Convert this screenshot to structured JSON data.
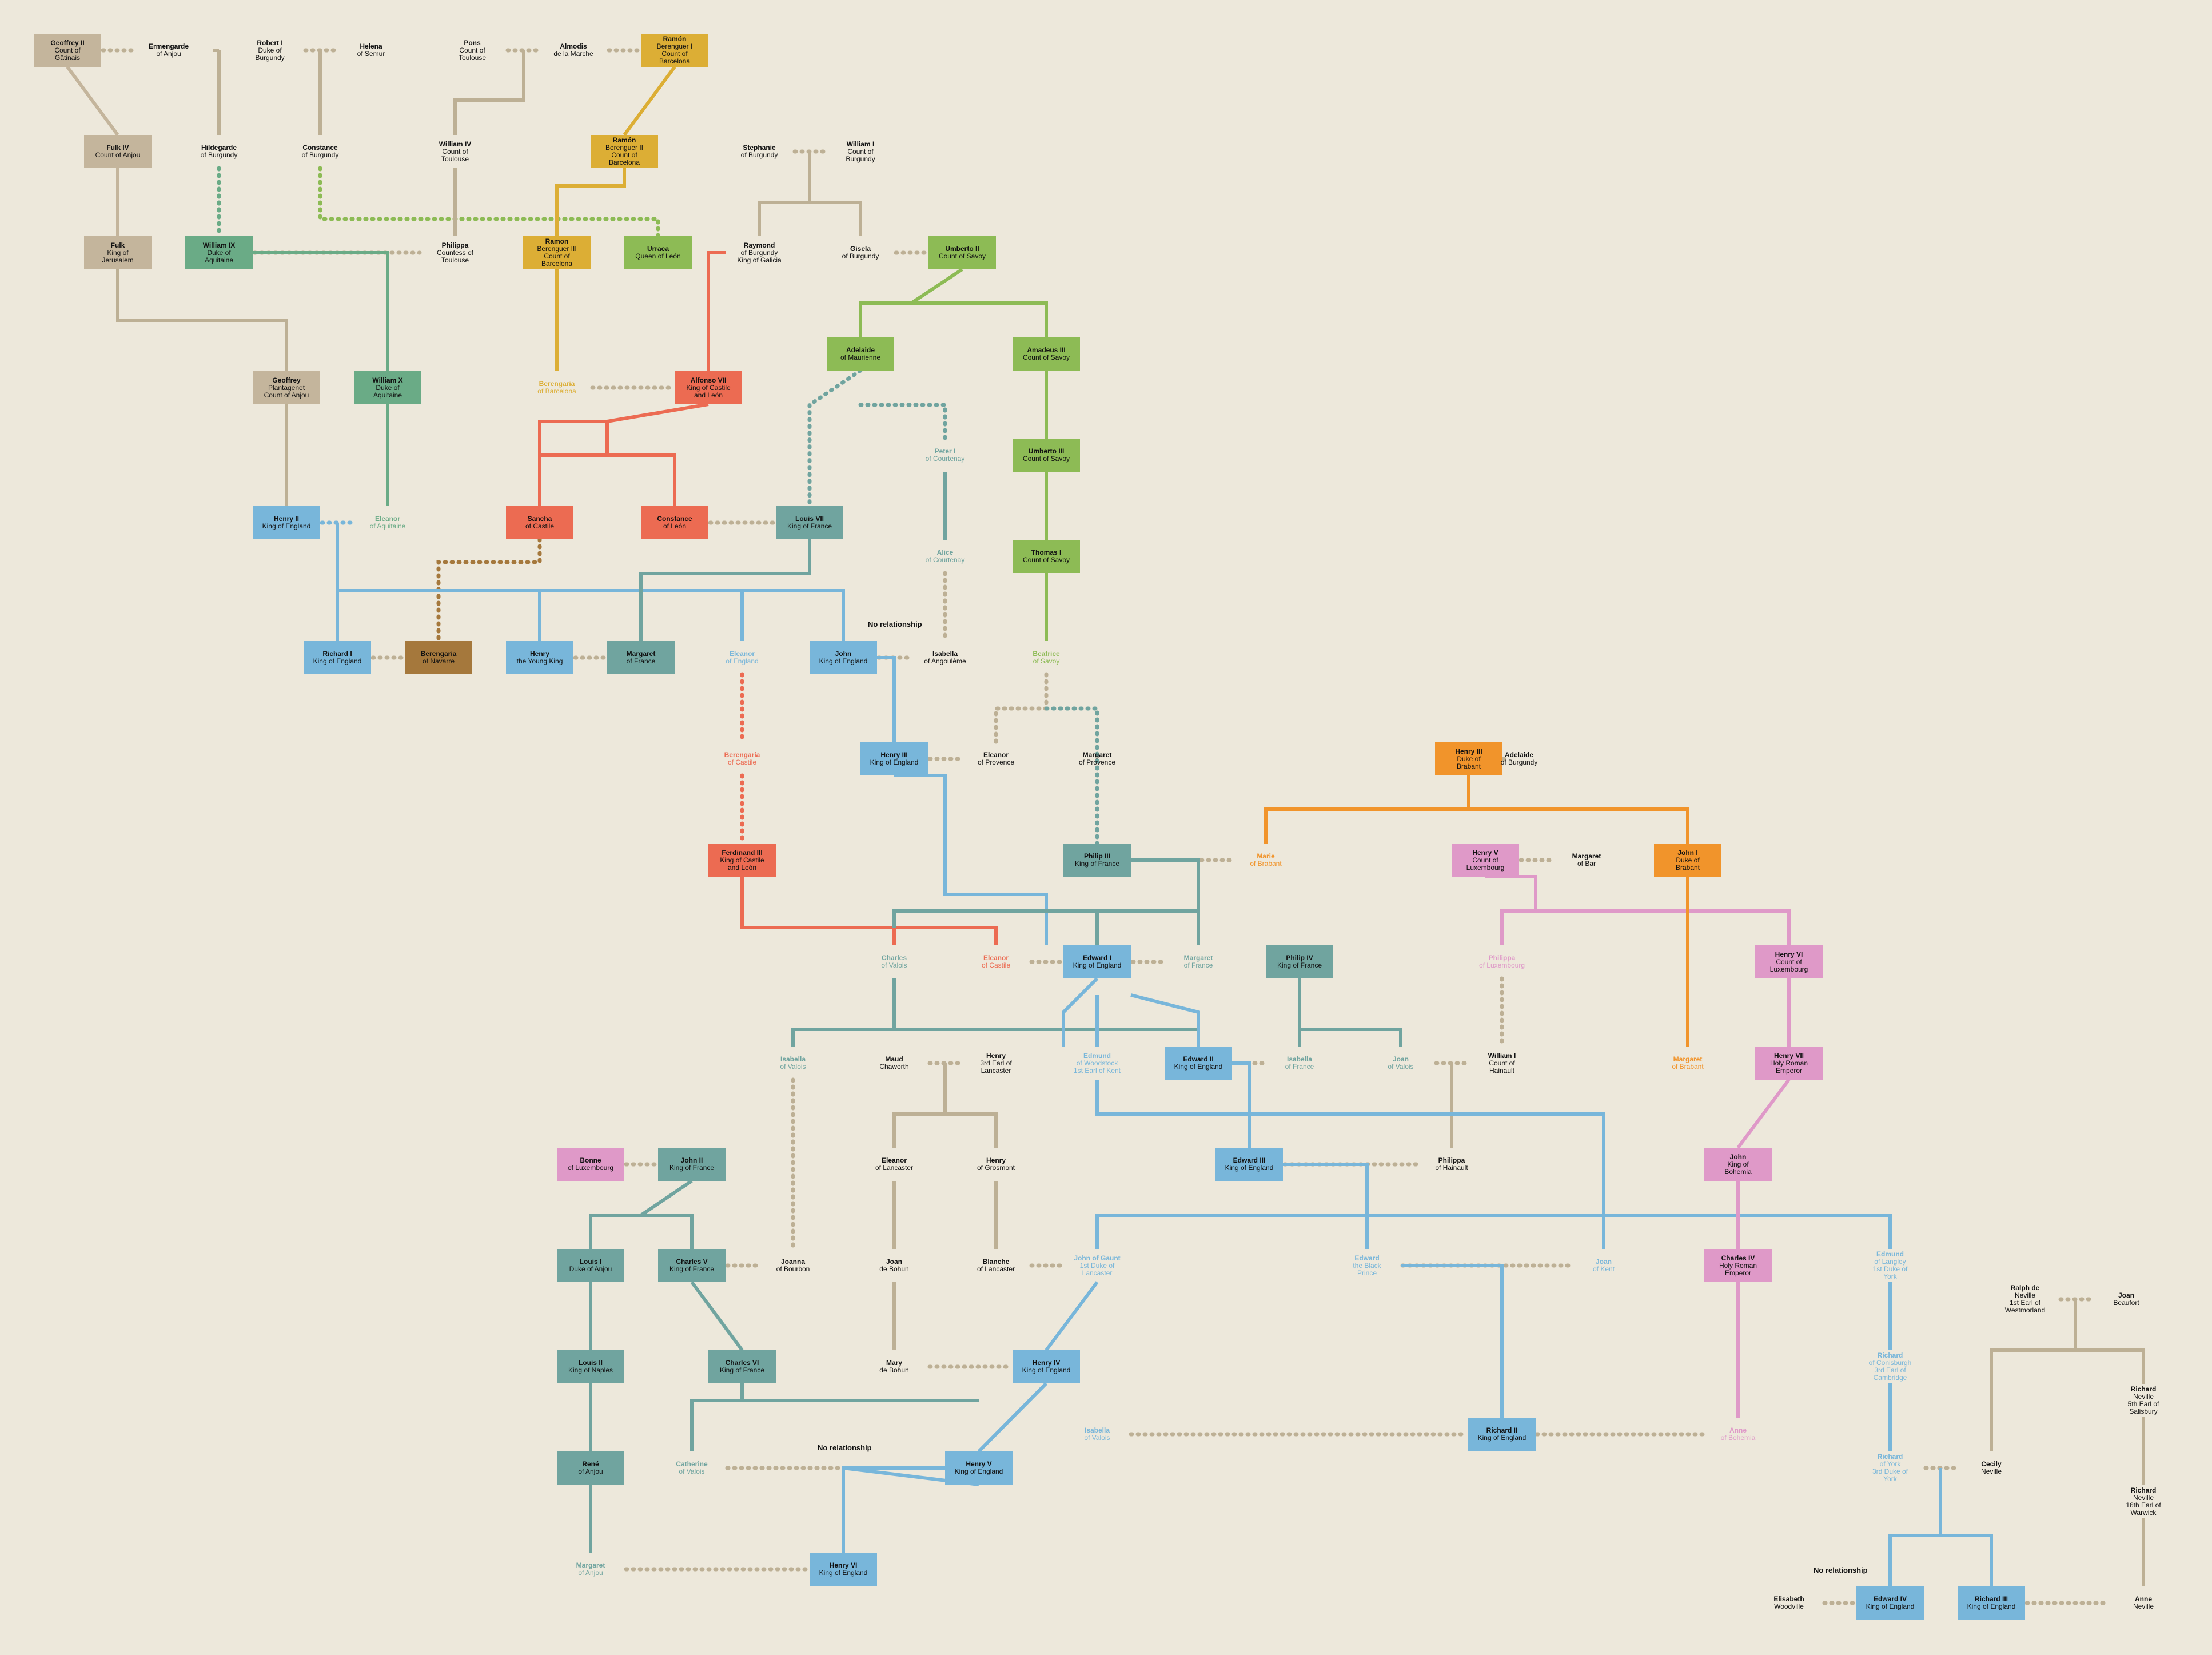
{
  "colors": {
    "anjou": "#c4b59c",
    "aquitaine": "#6aab86",
    "barcelona": "#dcae35",
    "savoy": "#8dbb55",
    "castile": "#ec6b52",
    "england": "#78b6da",
    "france": "#70a49f",
    "navarre": "#a5783c",
    "brabant": "#f1942b",
    "luxembourg": "#df99c8",
    "tan_line": "#bdb095",
    "text": "#111111"
  },
  "notes": [
    "No relationship",
    "No relationship",
    "No relationship"
  ],
  "people": [
    {
      "id": "geoffrey2",
      "lines": [
        "Geoffrey II",
        "Count of",
        "Gâtinais"
      ],
      "style": "box",
      "color": "anjou"
    },
    {
      "id": "ermengarde",
      "lines": [
        "Ermengarde",
        "of Anjou"
      ],
      "style": "plain",
      "color": "text"
    },
    {
      "id": "robert1",
      "lines": [
        "Robert I",
        "Duke of",
        "Burgundy"
      ],
      "style": "plain",
      "color": "text"
    },
    {
      "id": "helena",
      "lines": [
        "Helena",
        "of Semur"
      ],
      "style": "plain",
      "color": "text"
    },
    {
      "id": "pons",
      "lines": [
        "Pons",
        "Count of",
        "Toulouse"
      ],
      "style": "plain",
      "color": "text"
    },
    {
      "id": "almodis",
      "lines": [
        "Almodis",
        "de la Marche"
      ],
      "style": "plain",
      "color": "text"
    },
    {
      "id": "ramon1",
      "lines": [
        "Ramón",
        "Berenguer I",
        "Count of",
        "Barcelona"
      ],
      "style": "box",
      "color": "barcelona"
    },
    {
      "id": "fulk4",
      "lines": [
        "Fulk IV",
        "Count of Anjou"
      ],
      "style": "box",
      "color": "anjou"
    },
    {
      "id": "hildegarde",
      "lines": [
        "Hildegarde",
        "of Burgundy"
      ],
      "style": "plain",
      "color": "text"
    },
    {
      "id": "constanceB",
      "lines": [
        "Constance",
        "of Burgundy"
      ],
      "style": "plain",
      "color": "text"
    },
    {
      "id": "william4",
      "lines": [
        "William IV",
        "Count of",
        "Toulouse"
      ],
      "style": "plain",
      "color": "text"
    },
    {
      "id": "ramon2",
      "lines": [
        "Ramón",
        "Berenguer II",
        "Count of",
        "Barcelona"
      ],
      "style": "box",
      "color": "barcelona"
    },
    {
      "id": "stephanie",
      "lines": [
        "Stephanie",
        "of Burgundy"
      ],
      "style": "plain",
      "color": "text"
    },
    {
      "id": "william1B",
      "lines": [
        "William I",
        "Count of",
        "Burgundy"
      ],
      "style": "plain",
      "color": "text"
    },
    {
      "id": "fulk5",
      "lines": [
        "Fulk",
        "King of",
        "Jerusalem"
      ],
      "style": "box",
      "color": "anjou"
    },
    {
      "id": "william9",
      "lines": [
        "William IX",
        "Duke of",
        "Aquitaine"
      ],
      "style": "box",
      "color": "aquitaine"
    },
    {
      "id": "philippa",
      "lines": [
        "Philippa",
        "Countess of",
        "Toulouse"
      ],
      "style": "plain",
      "color": "text"
    },
    {
      "id": "ramon3",
      "lines": [
        "Ramon",
        "Berenguer III",
        "Count of",
        "Barcelona"
      ],
      "style": "box",
      "color": "barcelona"
    },
    {
      "id": "urraca",
      "lines": [
        "Urraca",
        "Queen of León"
      ],
      "style": "box",
      "color": "savoy"
    },
    {
      "id": "raymond",
      "lines": [
        "Raymond",
        "of Burgundy",
        "King of Galicia"
      ],
      "style": "plain",
      "color": "text"
    },
    {
      "id": "gisela",
      "lines": [
        "Gisela",
        "of Burgundy"
      ],
      "style": "plain",
      "color": "text"
    },
    {
      "id": "umberto2",
      "lines": [
        "Umberto II",
        "Count of Savoy"
      ],
      "style": "box",
      "color": "savoy"
    },
    {
      "id": "adelaide",
      "lines": [
        "Adelaide",
        "of Maurienne"
      ],
      "style": "box",
      "color": "savoy"
    },
    {
      "id": "amadeus3",
      "lines": [
        "Amadeus III",
        "Count of Savoy"
      ],
      "style": "box",
      "color": "savoy"
    },
    {
      "id": "geoffreyP",
      "lines": [
        "Geoffrey",
        "Plantagenet",
        "Count of Anjou"
      ],
      "style": "box",
      "color": "anjou"
    },
    {
      "id": "william10",
      "lines": [
        "William X",
        "Duke of",
        "Aquitaine"
      ],
      "style": "box",
      "color": "aquitaine"
    },
    {
      "id": "berengariaB",
      "lines": [
        "Berengaria",
        "of Barcelona"
      ],
      "style": "plain",
      "color": "barcelona"
    },
    {
      "id": "alfonso7",
      "lines": [
        "Alfonso VII",
        "King of Castile",
        "and León"
      ],
      "style": "box",
      "color": "castile"
    },
    {
      "id": "peter1",
      "lines": [
        "Peter I",
        "of Courtenay"
      ],
      "style": "plain",
      "color": "france"
    },
    {
      "id": "umberto3",
      "lines": [
        "Umberto III",
        "Count of Savoy"
      ],
      "style": "box",
      "color": "savoy"
    },
    {
      "id": "henry2",
      "lines": [
        "Henry II",
        "King of England"
      ],
      "style": "box",
      "color": "england"
    },
    {
      "id": "eleanorA",
      "lines": [
        "Eleanor",
        "of Aquitaine"
      ],
      "style": "plain",
      "color": "aquitaine"
    },
    {
      "id": "sancha",
      "lines": [
        "Sancha",
        "of Castile"
      ],
      "style": "box",
      "color": "castile"
    },
    {
      "id": "constanceL",
      "lines": [
        "Constance",
        "of León"
      ],
      "style": "box",
      "color": "castile"
    },
    {
      "id": "louis7",
      "lines": [
        "Louis VII",
        "King of France"
      ],
      "style": "box",
      "color": "france"
    },
    {
      "id": "alice",
      "lines": [
        "Alice",
        "of Courtenay"
      ],
      "style": "plain",
      "color": "france"
    },
    {
      "id": "thomas1",
      "lines": [
        "Thomas I",
        "Count of Savoy"
      ],
      "style": "box",
      "color": "savoy"
    },
    {
      "id": "richard1",
      "lines": [
        "Richard I",
        "King of England"
      ],
      "style": "box",
      "color": "england"
    },
    {
      "id": "berengariaN",
      "lines": [
        "Berengaria",
        "of Navarre"
      ],
      "style": "box",
      "color": "navarre"
    },
    {
      "id": "henryYK",
      "lines": [
        "Henry",
        "the Young King"
      ],
      "style": "box",
      "color": "england"
    },
    {
      "id": "margaretF",
      "lines": [
        "Margaret",
        "of France"
      ],
      "style": "box",
      "color": "france"
    },
    {
      "id": "eleanorE",
      "lines": [
        "Eleanor",
        "of England"
      ],
      "style": "plain",
      "color": "england"
    },
    {
      "id": "john",
      "lines": [
        "John",
        "King of England"
      ],
      "style": "box",
      "color": "england"
    },
    {
      "id": "isabellaA",
      "lines": [
        "Isabella",
        "of Angoulême"
      ],
      "style": "plain",
      "color": "text"
    },
    {
      "id": "beatrice",
      "lines": [
        "Beatrice",
        "of Savoy"
      ],
      "style": "plain",
      "color": "savoy"
    },
    {
      "id": "berengariaC",
      "lines": [
        "Berengaria",
        "of Castile"
      ],
      "style": "plain",
      "color": "castile"
    },
    {
      "id": "henry3",
      "lines": [
        "Henry III",
        "King of England"
      ],
      "style": "box",
      "color": "england"
    },
    {
      "id": "eleanorP",
      "lines": [
        "Eleanor",
        "of Provence"
      ],
      "style": "plain",
      "color": "text"
    },
    {
      "id": "margaretP",
      "lines": [
        "Margaret",
        "of Provence"
      ],
      "style": "plain",
      "color": "text"
    },
    {
      "id": "henry3B",
      "lines": [
        "Henry III",
        "Duke of",
        "Brabant"
      ],
      "style": "box",
      "color": "brabant"
    },
    {
      "id": "adelaideB",
      "lines": [
        "Adelaide",
        "of Burgundy"
      ],
      "style": "plain",
      "color": "text"
    },
    {
      "id": "ferdinand3",
      "lines": [
        "Ferdinand III",
        "King of Castile",
        "and León"
      ],
      "style": "box",
      "color": "castile"
    },
    {
      "id": "philip3",
      "lines": [
        "Philip III",
        "King of France"
      ],
      "style": "box",
      "color": "france"
    },
    {
      "id": "marieB",
      "lines": [
        "Marie",
        "of Brabant"
      ],
      "style": "plain",
      "color": "brabant"
    },
    {
      "id": "henry5L",
      "lines": [
        "Henry V",
        "Count of",
        "Luxembourg"
      ],
      "style": "box",
      "color": "luxembourg"
    },
    {
      "id": "margaretBar",
      "lines": [
        "Margaret",
        "of Bar"
      ],
      "style": "plain",
      "color": "text"
    },
    {
      "id": "john1B",
      "lines": [
        "John I",
        "Duke of",
        "Brabant"
      ],
      "style": "box",
      "color": "brabant"
    },
    {
      "id": "charlesV",
      "lines": [
        "Charles",
        "of Valois"
      ],
      "style": "plain",
      "color": "france"
    },
    {
      "id": "eleanorC",
      "lines": [
        "Eleanor",
        "of Castile"
      ],
      "style": "plain",
      "color": "castile"
    },
    {
      "id": "edward1",
      "lines": [
        "Edward I",
        "King of England"
      ],
      "style": "box",
      "color": "england"
    },
    {
      "id": "margaretF2",
      "lines": [
        "Margaret",
        "of France"
      ],
      "style": "plain",
      "color": "france"
    },
    {
      "id": "philip4",
      "lines": [
        "Philip IV",
        "King of France"
      ],
      "style": "box",
      "color": "france"
    },
    {
      "id": "philippaL",
      "lines": [
        "Philippa",
        "of Luxembourg"
      ],
      "style": "plain",
      "color": "luxembourg"
    },
    {
      "id": "henry6L",
      "lines": [
        "Henry VI",
        "Count of",
        "Luxembourg"
      ],
      "style": "box",
      "color": "luxembourg"
    },
    {
      "id": "isabellaV",
      "lines": [
        "Isabella",
        "of Valois"
      ],
      "style": "plain",
      "color": "france"
    },
    {
      "id": "maud",
      "lines": [
        "Maud",
        "Chaworth"
      ],
      "style": "plain",
      "color": "text"
    },
    {
      "id": "henryLan",
      "lines": [
        "Henry",
        "3rd Earl of",
        "Lancaster"
      ],
      "style": "plain",
      "color": "text"
    },
    {
      "id": "edmundW",
      "lines": [
        "Edmund",
        "of Woodstock",
        "1st Earl of Kent"
      ],
      "style": "plain",
      "color": "england"
    },
    {
      "id": "edward2",
      "lines": [
        "Edward II",
        "King of England"
      ],
      "style": "box",
      "color": "england"
    },
    {
      "id": "isabellaF",
      "lines": [
        "Isabella",
        "of France"
      ],
      "style": "plain",
      "color": "france"
    },
    {
      "id": "joanV",
      "lines": [
        "Joan",
        "of Valois"
      ],
      "style": "plain",
      "color": "france"
    },
    {
      "id": "william1H",
      "lines": [
        "William I",
        "Count of",
        "Hainault"
      ],
      "style": "plain",
      "color": "text"
    },
    {
      "id": "margaretBr",
      "lines": [
        "Margaret",
        "of Brabant"
      ],
      "style": "plain",
      "color": "brabant"
    },
    {
      "id": "henry7",
      "lines": [
        "Henry VII",
        "Holy Roman",
        "Emperor"
      ],
      "style": "box",
      "color": "luxembourg"
    },
    {
      "id": "bonne",
      "lines": [
        "Bonne",
        "of Luxembourg"
      ],
      "style": "box",
      "color": "luxembourg"
    },
    {
      "id": "john2F",
      "lines": [
        "John II",
        "King of France"
      ],
      "style": "box",
      "color": "france"
    },
    {
      "id": "eleanorL",
      "lines": [
        "Eleanor",
        "of Lancaster"
      ],
      "style": "plain",
      "color": "text"
    },
    {
      "id": "henryG",
      "lines": [
        "Henry",
        "of Grosmont"
      ],
      "style": "plain",
      "color": "text"
    },
    {
      "id": "edward3",
      "lines": [
        "Edward III",
        "King of England"
      ],
      "style": "box",
      "color": "england"
    },
    {
      "id": "philippaH",
      "lines": [
        "Philippa",
        "of Hainault"
      ],
      "style": "plain",
      "color": "text"
    },
    {
      "id": "johnBoh",
      "lines": [
        "John",
        "King of",
        "Bohemia"
      ],
      "style": "box",
      "color": "luxembourg"
    },
    {
      "id": "louis1A",
      "lines": [
        "Louis I",
        "Duke of Anjou"
      ],
      "style": "box",
      "color": "france"
    },
    {
      "id": "charles5",
      "lines": [
        "Charles V",
        "King of France"
      ],
      "style": "box",
      "color": "france"
    },
    {
      "id": "joannaB",
      "lines": [
        "Joanna",
        "of Bourbon"
      ],
      "style": "plain",
      "color": "text"
    },
    {
      "id": "joanBohun",
      "lines": [
        "Joan",
        "de Bohun"
      ],
      "style": "plain",
      "color": "text"
    },
    {
      "id": "blanche",
      "lines": [
        "Blanche",
        "of Lancaster"
      ],
      "style": "plain",
      "color": "text"
    },
    {
      "id": "johnGaunt",
      "lines": [
        "John of Gaunt",
        "1st Duke of",
        "Lancaster"
      ],
      "style": "plain",
      "color": "england"
    },
    {
      "id": "edwardBP",
      "lines": [
        "Edward",
        "the Black",
        "Prince"
      ],
      "style": "plain",
      "color": "england"
    },
    {
      "id": "joanKent",
      "lines": [
        "Joan",
        "of Kent"
      ],
      "style": "plain",
      "color": "england"
    },
    {
      "id": "charles4",
      "lines": [
        "Charles IV",
        "Holy Roman",
        "Emperor"
      ],
      "style": "box",
      "color": "luxembourg"
    },
    {
      "id": "edmundL",
      "lines": [
        "Edmund",
        "of Langley",
        "1st Duke of",
        "York"
      ],
      "style": "plain",
      "color": "england"
    },
    {
      "id": "ralphN",
      "lines": [
        "Ralph de",
        "Neville",
        "1st Earl of",
        "Westmorland"
      ],
      "style": "plain",
      "color": "text"
    },
    {
      "id": "joanBeau",
      "lines": [
        "Joan",
        "Beaufort"
      ],
      "style": "plain",
      "color": "text"
    },
    {
      "id": "louis2N",
      "lines": [
        "Louis II",
        "King of Naples"
      ],
      "style": "box",
      "color": "france"
    },
    {
      "id": "charles6",
      "lines": [
        "Charles VI",
        "King of France"
      ],
      "style": "box",
      "color": "france"
    },
    {
      "id": "maryB",
      "lines": [
        "Mary",
        "de Bohun"
      ],
      "style": "plain",
      "color": "text"
    },
    {
      "id": "henry4",
      "lines": [
        "Henry IV",
        "King of England"
      ],
      "style": "box",
      "color": "england"
    },
    {
      "id": "richardC",
      "lines": [
        "Richard",
        "of Conisburgh",
        "3rd Earl of",
        "Cambridge"
      ],
      "style": "plain",
      "color": "england"
    },
    {
      "id": "richardNS",
      "lines": [
        "Richard",
        "Neville",
        "5th Earl of",
        "Salisbury"
      ],
      "style": "plain",
      "color": "text"
    },
    {
      "id": "isabellaV2",
      "lines": [
        "Isabella",
        "of Valois"
      ],
      "style": "plain",
      "color": "england"
    },
    {
      "id": "richard2",
      "lines": [
        "Richard II",
        "King of England"
      ],
      "style": "box",
      "color": "england"
    },
    {
      "id": "anneBoh",
      "lines": [
        "Anne",
        "of Bohemia"
      ],
      "style": "plain",
      "color": "luxembourg"
    },
    {
      "id": "rene",
      "lines": [
        "René",
        "of Anjou"
      ],
      "style": "box",
      "color": "france"
    },
    {
      "id": "catherineV",
      "lines": [
        "Catherine",
        "of Valois"
      ],
      "style": "plain",
      "color": "france"
    },
    {
      "id": "henry5",
      "lines": [
        "Henry V",
        "King of England"
      ],
      "style": "box",
      "color": "england"
    },
    {
      "id": "richardY",
      "lines": [
        "Richard",
        "of York",
        "3rd Duke of",
        "York"
      ],
      "style": "plain",
      "color": "england"
    },
    {
      "id": "cecily",
      "lines": [
        "Cecily",
        "Neville"
      ],
      "style": "plain",
      "color": "text"
    },
    {
      "id": "richardNW",
      "lines": [
        "Richard",
        "Neville",
        "16th Earl of",
        "Warwick"
      ],
      "style": "plain",
      "color": "text"
    },
    {
      "id": "margaretA",
      "lines": [
        "Margaret",
        "of Anjou"
      ],
      "style": "plain",
      "color": "france"
    },
    {
      "id": "henry6",
      "lines": [
        "Henry VI",
        "King of England"
      ],
      "style": "box",
      "color": "england"
    },
    {
      "id": "elisabethW",
      "lines": [
        "Elisabeth",
        "Woodville"
      ],
      "style": "plain",
      "color": "text"
    },
    {
      "id": "edward4",
      "lines": [
        "Edward IV",
        "King of England"
      ],
      "style": "box",
      "color": "england"
    },
    {
      "id": "richard3",
      "lines": [
        "Richard III",
        "King of England"
      ],
      "style": "box",
      "color": "england"
    },
    {
      "id": "anneN",
      "lines": [
        "Anne",
        "Neville"
      ],
      "style": "plain",
      "color": "text"
    }
  ]
}
